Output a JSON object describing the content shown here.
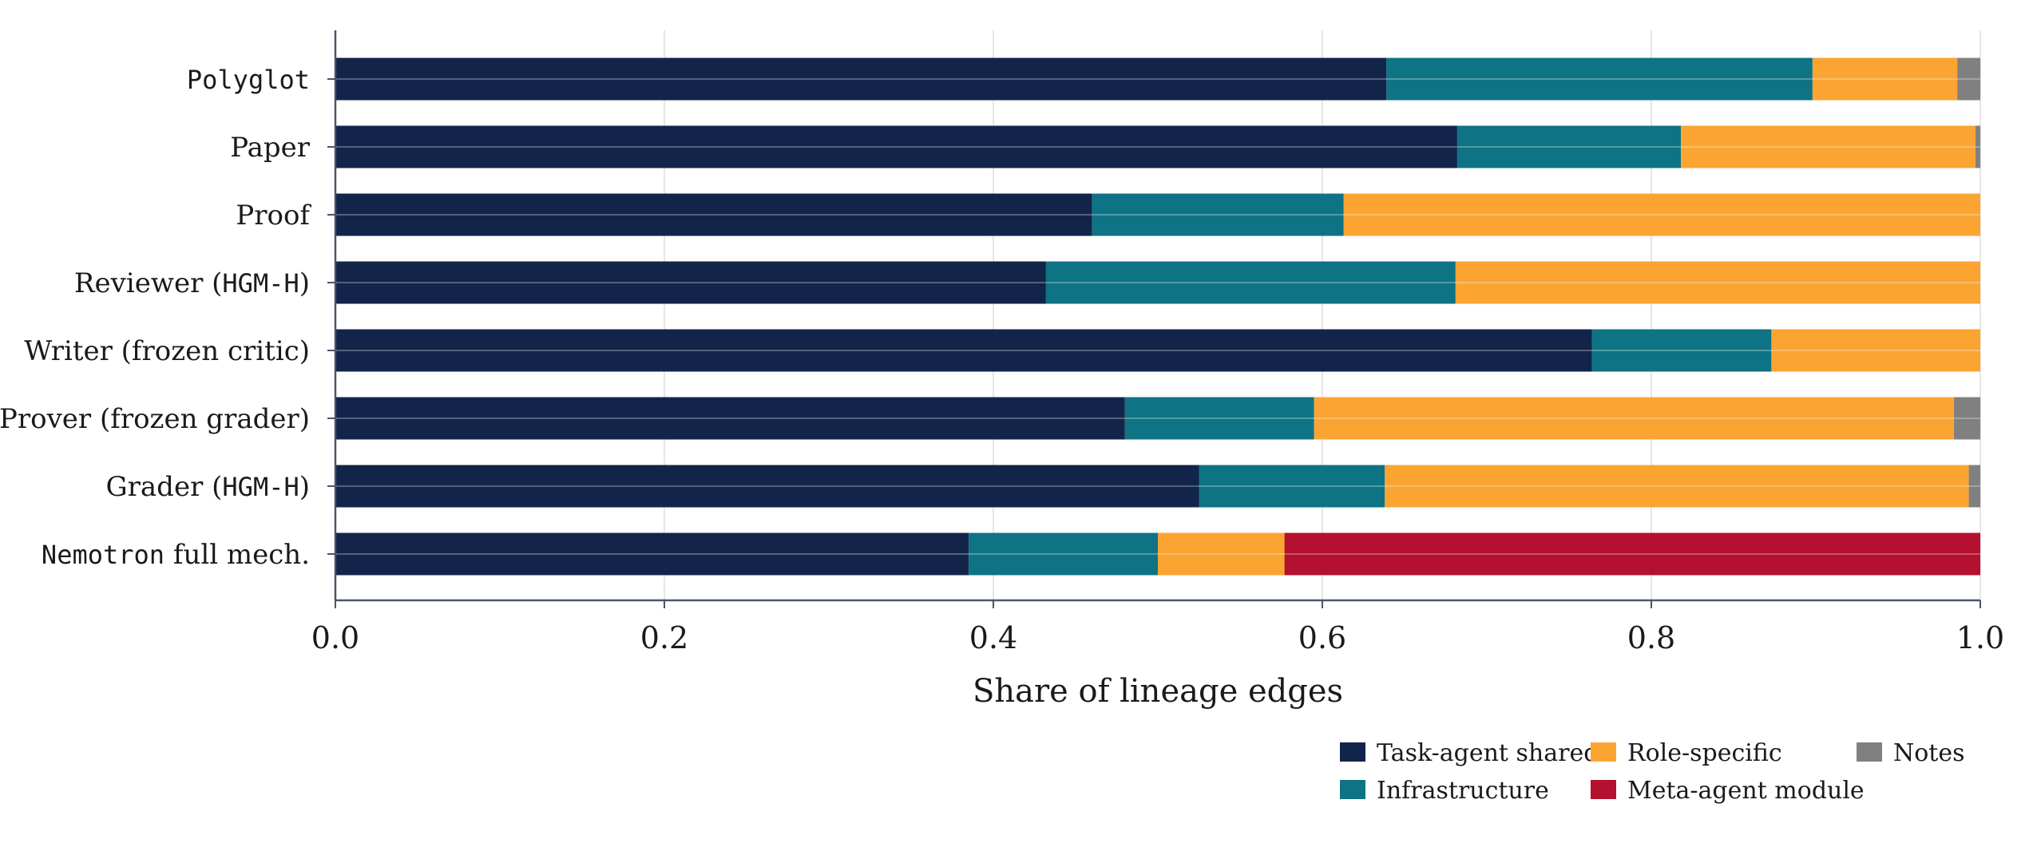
{
  "chart_data": {
    "type": "bar",
    "orientation": "horizontal",
    "stacked": true,
    "categories": [
      {
        "parts": [
          {
            "text": "Polyglot",
            "mono": true
          }
        ]
      },
      {
        "parts": [
          {
            "text": "Paper",
            "mono": false
          }
        ]
      },
      {
        "parts": [
          {
            "text": "Proof",
            "mono": false
          }
        ]
      },
      {
        "parts": [
          {
            "text": "Reviewer (",
            "mono": false
          },
          {
            "text": "HGM-H",
            "mono": true
          },
          {
            "text": ")",
            "mono": false
          }
        ]
      },
      {
        "parts": [
          {
            "text": "Writer (frozen critic)",
            "mono": false
          }
        ]
      },
      {
        "parts": [
          {
            "text": "Prover (frozen grader)",
            "mono": false
          }
        ]
      },
      {
        "parts": [
          {
            "text": "Grader (",
            "mono": false
          },
          {
            "text": "HGM-H",
            "mono": true
          },
          {
            "text": ")",
            "mono": false
          }
        ]
      },
      {
        "parts": [
          {
            "text": "Nemotron",
            "mono": true
          },
          {
            "text": " full mech.",
            "mono": false
          }
        ]
      }
    ],
    "series": [
      {
        "name": "Task-agent shared",
        "color": "#13244a",
        "values": [
          0.639,
          0.682,
          0.46,
          0.432,
          0.764,
          0.48,
          0.525,
          0.385
        ]
      },
      {
        "name": "Infrastructure",
        "color": "#0e7384",
        "values": [
          0.259,
          0.136,
          0.153,
          0.249,
          0.109,
          0.115,
          0.113,
          0.115
        ]
      },
      {
        "name": "Role-specific",
        "color": "#fba432",
        "values": [
          0.088,
          0.179,
          0.387,
          0.319,
          0.127,
          0.389,
          0.355,
          0.077
        ]
      },
      {
        "name": "Meta-agent module",
        "color": "#b3112f",
        "values": [
          0,
          0,
          0,
          0,
          0,
          0,
          0,
          0.423
        ]
      },
      {
        "name": "Notes",
        "color": "#808080",
        "values": [
          0.014,
          0.003,
          0,
          0,
          0,
          0.016,
          0.007,
          0
        ]
      }
    ],
    "xlim": [
      0,
      1
    ],
    "xticks": [
      "0.0",
      "0.2",
      "0.4",
      "0.6",
      "0.8",
      "1.0"
    ],
    "xtick_values": [
      0,
      0.2,
      0.4,
      0.6,
      0.8,
      1.0
    ],
    "xlabel": "Share of lineage edges",
    "ylabel": "",
    "title": "",
    "grid": "vertical",
    "legend_position": "bottom-right",
    "legend_order": [
      "Task-agent shared",
      "Role-specific",
      "Notes",
      "Infrastructure",
      "Meta-agent module"
    ]
  }
}
